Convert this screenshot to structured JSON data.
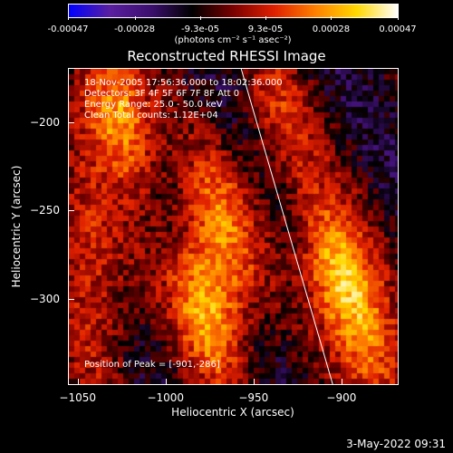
{
  "colorbar": {
    "ticks": [
      "-0.00047",
      "-0.00028",
      "-9.3e-05",
      "9.3e-05",
      "0.00028",
      "0.00047"
    ],
    "units": "(photons cm⁻² s⁻¹ asec⁻²)",
    "range": [
      -0.00047,
      0.00047
    ]
  },
  "annotations": {
    "time": "18-Nov-2005 17:56:36.000 to 18:02:36.000",
    "detectors": "Detectors: 3F 4F 5F 6F 7F 8F  Att 0",
    "energy": "Energy Range: 25.0 - 50.0 keV",
    "clean": "Clean     Total counts: 1.12E+04",
    "peak": "Position of Peak = [-901,-286]"
  },
  "footer": {
    "timestamp": "3-May-2022 09:31"
  },
  "chart_data": {
    "type": "heatmap",
    "title": "Reconstructed RHESSI Image",
    "xlabel": "Heliocentric X (arcsec)",
    "ylabel": "Heliocentric Y (arcsec)",
    "xlim": [
      -1055,
      -868
    ],
    "ylim": [
      -348,
      -170
    ],
    "x_ticks": [
      -1050,
      -1000,
      -950,
      -900
    ],
    "y_ticks": [
      -200,
      -250,
      -300
    ],
    "x_tick_labels": [
      "−1050",
      "−1000",
      "−950",
      "−900"
    ],
    "y_tick_labels": [
      "−200",
      "−250",
      "−300"
    ],
    "limb_line": {
      "x": [
        -957,
        -905
      ],
      "y": [
        -170,
        -348
      ]
    },
    "peak_position": [
      -901,
      -286
    ],
    "colormap": [
      "#0000ff",
      "#5a1fa0",
      "#3c0f6e",
      "#000000",
      "#7a0000",
      "#e02000",
      "#ff8000",
      "#ffd800",
      "#ffffff"
    ],
    "bright_sources": [
      {
        "x": -1027,
        "y": -196,
        "value": 0.00045
      },
      {
        "x": -976,
        "y": -307,
        "value": 0.00042
      },
      {
        "x": -968,
        "y": -258,
        "value": 0.0003
      },
      {
        "x": -935,
        "y": -200,
        "value": 0.00022
      },
      {
        "x": -901,
        "y": -286,
        "value": 0.00047
      },
      {
        "x": -880,
        "y": -335,
        "value": 0.00025
      },
      {
        "x": -1045,
        "y": -265,
        "value": 0.0002
      },
      {
        "x": -1040,
        "y": -320,
        "value": 0.00018
      }
    ]
  }
}
